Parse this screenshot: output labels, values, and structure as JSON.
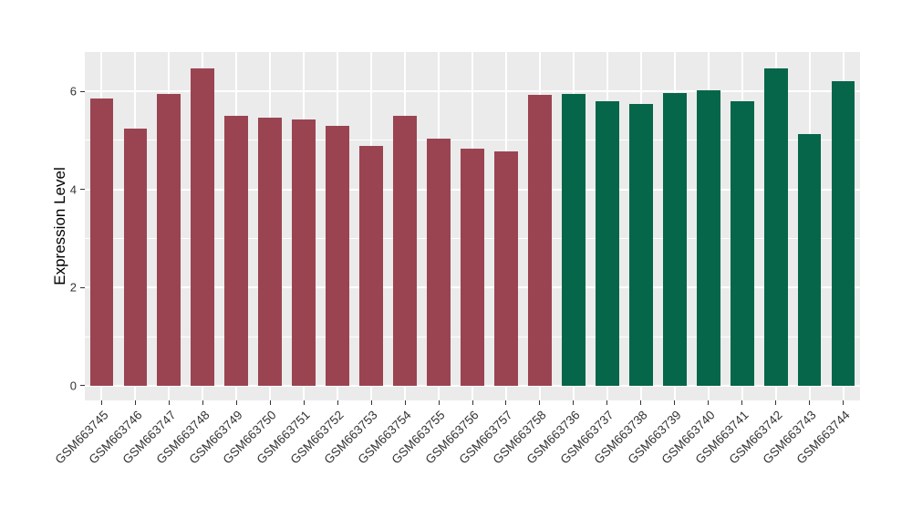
{
  "chart_data": {
    "type": "bar",
    "title": "",
    "xlabel": "",
    "ylabel": "Expression Level",
    "ylim": [
      -0.3,
      6.8
    ],
    "baseline": 0,
    "yticks": [
      0,
      2,
      4,
      6
    ],
    "minor_yticks": [
      1,
      3,
      5
    ],
    "grid": true,
    "legend_position": "none",
    "panel_background": "#ebebeb",
    "gridline_color": "#ffffff",
    "axis_tick_color": "#333333",
    "axis_text_color": "#333333",
    "group_colors": {
      "left_group": "#9a4452",
      "right_group": "#066649"
    },
    "categories": [
      "GSM663745",
      "GSM663746",
      "GSM663747",
      "GSM663748",
      "GSM663749",
      "GSM663750",
      "GSM663751",
      "GSM663752",
      "GSM663753",
      "GSM663754",
      "GSM663755",
      "GSM663756",
      "GSM663757",
      "GSM663758",
      "GSM663736",
      "GSM663737",
      "GSM663738",
      "GSM663739",
      "GSM663740",
      "GSM663741",
      "GSM663742",
      "GSM663743",
      "GSM663744"
    ],
    "values": [
      5.85,
      5.24,
      5.94,
      6.46,
      5.49,
      5.46,
      5.43,
      5.3,
      4.88,
      5.49,
      5.04,
      4.83,
      4.78,
      5.93,
      5.94,
      5.79,
      5.74,
      5.97,
      6.02,
      5.79,
      6.47,
      5.12,
      6.2
    ],
    "bar_colors": [
      "#9a4452",
      "#9a4452",
      "#9a4452",
      "#9a4452",
      "#9a4452",
      "#9a4452",
      "#9a4452",
      "#9a4452",
      "#9a4452",
      "#9a4452",
      "#9a4452",
      "#9a4452",
      "#9a4452",
      "#9a4452",
      "#066649",
      "#066649",
      "#066649",
      "#066649",
      "#066649",
      "#066649",
      "#066649",
      "#066649",
      "#066649"
    ]
  }
}
